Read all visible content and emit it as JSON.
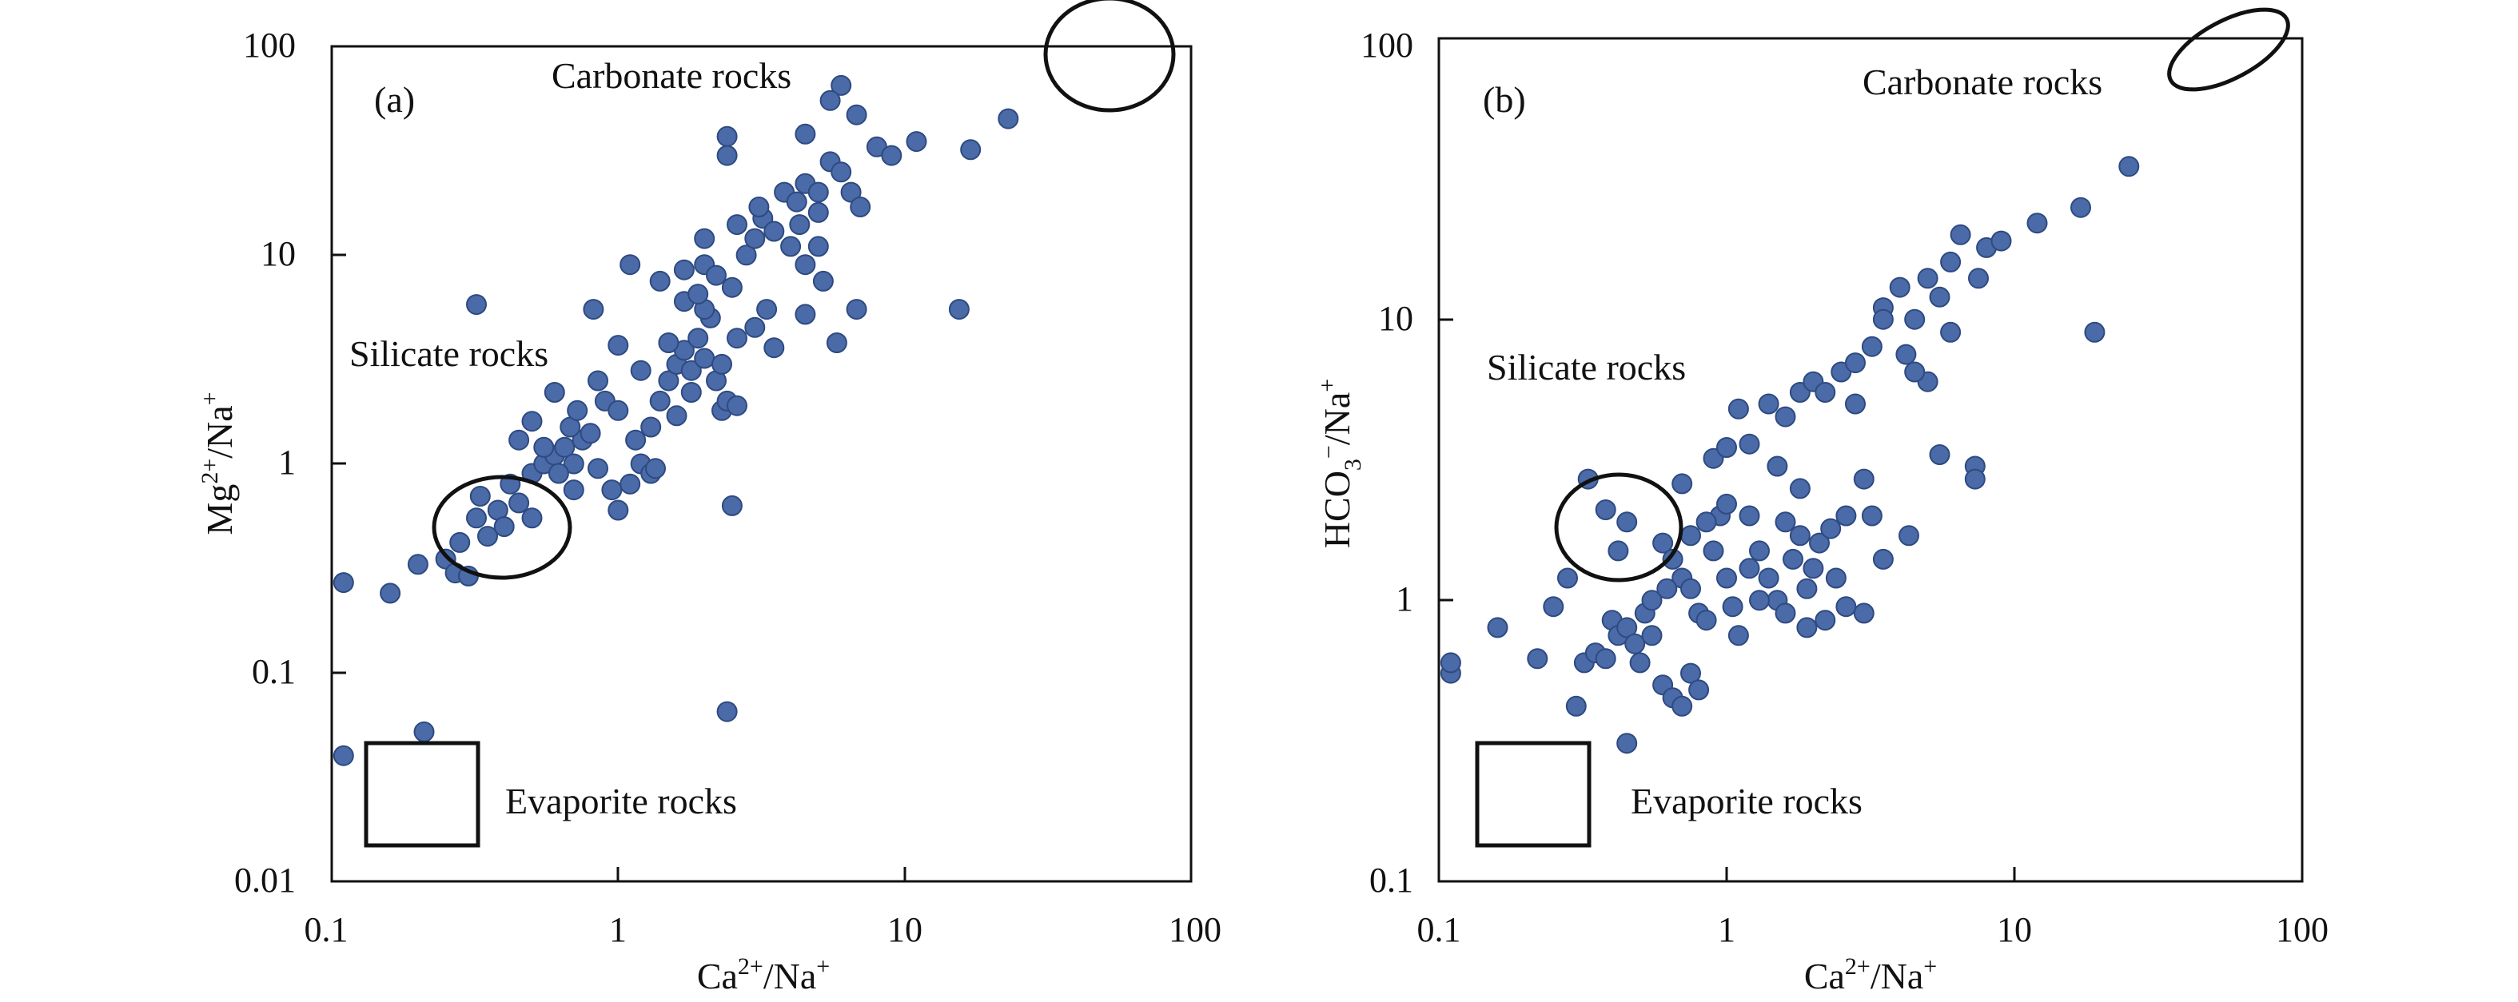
{
  "colors": {
    "point": "#4a6aa8",
    "point_edge": "#2e4a80",
    "hatch": "#333333",
    "line_hatch": "#6a9fb0",
    "axis": "#111111"
  },
  "chart_data": [
    {
      "panel": "(a)",
      "type": "scatter",
      "xlabel": "Ca2+/Na+",
      "ylabel": "Mg2+/Na+",
      "xscale": "log",
      "yscale": "log",
      "xlim": [
        0.1,
        100
      ],
      "ylim": [
        0.01,
        100
      ],
      "xticks": [
        "0.1",
        "1",
        "10",
        "100"
      ],
      "yticks": [
        "0.01",
        "0.1",
        "1",
        "10",
        "100"
      ],
      "annotations": {
        "carbonate": "Carbonate rocks",
        "silicate": "Silicate rocks",
        "evaporite": "Evaporite rocks"
      },
      "points": [
        [
          0.11,
          0.27
        ],
        [
          0.11,
          0.04
        ],
        [
          0.16,
          0.24
        ],
        [
          0.2,
          0.33
        ],
        [
          0.21,
          0.052
        ],
        [
          0.25,
          0.35
        ],
        [
          0.27,
          0.3
        ],
        [
          0.3,
          0.29
        ],
        [
          0.32,
          5.8
        ],
        [
          0.28,
          0.42
        ],
        [
          0.32,
          0.55
        ],
        [
          0.35,
          0.45
        ],
        [
          0.38,
          0.6
        ],
        [
          0.4,
          0.5
        ],
        [
          0.45,
          0.65
        ],
        [
          0.5,
          0.55
        ],
        [
          0.33,
          0.7
        ],
        [
          0.42,
          0.8
        ],
        [
          0.5,
          0.9
        ],
        [
          0.55,
          1.0
        ],
        [
          0.6,
          1.1
        ],
        [
          0.65,
          1.2
        ],
        [
          0.7,
          1.0
        ],
        [
          0.75,
          1.3
        ],
        [
          0.62,
          0.9
        ],
        [
          0.55,
          1.2
        ],
        [
          0.68,
          1.5
        ],
        [
          0.72,
          1.8
        ],
        [
          0.8,
          1.4
        ],
        [
          0.85,
          2.5
        ],
        [
          0.9,
          2.0
        ],
        [
          0.6,
          2.2
        ],
        [
          0.5,
          1.6
        ],
        [
          0.45,
          1.3
        ],
        [
          0.82,
          5.5
        ],
        [
          1.0,
          0.6
        ],
        [
          1.1,
          0.8
        ],
        [
          1.2,
          1.0
        ],
        [
          1.3,
          1.5
        ],
        [
          1.4,
          2.0
        ],
        [
          1.5,
          2.5
        ],
        [
          1.6,
          3.0
        ],
        [
          1.7,
          3.5
        ],
        [
          1.8,
          2.8
        ],
        [
          1.9,
          4.0
        ],
        [
          2.0,
          3.2
        ],
        [
          2.1,
          5.0
        ],
        [
          2.2,
          2.5
        ],
        [
          2.3,
          1.8
        ],
        [
          1.5,
          3.8
        ],
        [
          1.3,
          0.9
        ],
        [
          1.1,
          9.0
        ],
        [
          1.4,
          7.5
        ],
        [
          1.7,
          6.0
        ],
        [
          2.0,
          9.0
        ],
        [
          2.2,
          8.0
        ],
        [
          2.5,
          7.0
        ],
        [
          2.8,
          10.0
        ],
        [
          3.0,
          12.0
        ],
        [
          3.2,
          15.0
        ],
        [
          3.5,
          13.0
        ],
        [
          3.8,
          20.0
        ],
        [
          4.2,
          18.0
        ],
        [
          4.5,
          22.0
        ],
        [
          5.0,
          16.0
        ],
        [
          5.5,
          28.0
        ],
        [
          6.0,
          25.0
        ],
        [
          5.0,
          11.0
        ],
        [
          4.5,
          9.0
        ],
        [
          5.2,
          7.5
        ],
        [
          6.5,
          20.0
        ],
        [
          7.0,
          17.0
        ],
        [
          8.0,
          33.0
        ],
        [
          9.0,
          30.0
        ],
        [
          11.0,
          35.0
        ],
        [
          17.0,
          32.0
        ],
        [
          23.0,
          45.0
        ],
        [
          6.0,
          65.0
        ],
        [
          5.5,
          55.0
        ],
        [
          6.8,
          47.0
        ],
        [
          2.4,
          37.0
        ],
        [
          2.4,
          30.0
        ],
        [
          4.5,
          38.0
        ],
        [
          2.5,
          0.63
        ],
        [
          2.4,
          0.065
        ],
        [
          6.8,
          5.5
        ],
        [
          5.8,
          3.8
        ],
        [
          4.5,
          5.2
        ],
        [
          3.0,
          4.5
        ],
        [
          2.6,
          4.0
        ],
        [
          1.8,
          2.2
        ],
        [
          1.6,
          1.7
        ],
        [
          1.2,
          2.8
        ],
        [
          1.0,
          3.7
        ],
        [
          2.3,
          3.0
        ],
        [
          15.5,
          5.5
        ],
        [
          3.3,
          5.5
        ],
        [
          2.0,
          5.5
        ],
        [
          1.9,
          6.5
        ],
        [
          2.4,
          2.0
        ],
        [
          1.0,
          1.8
        ],
        [
          1.15,
          1.3
        ],
        [
          0.95,
          0.75
        ],
        [
          1.35,
          0.95
        ],
        [
          2.6,
          1.9
        ],
        [
          3.5,
          3.6
        ],
        [
          4.0,
          11.0
        ],
        [
          4.3,
          14.0
        ],
        [
          3.1,
          17.0
        ],
        [
          2.6,
          14.0
        ],
        [
          1.7,
          8.5
        ],
        [
          2.0,
          12.0
        ],
        [
          5.0,
          20.0
        ],
        [
          0.7,
          0.75
        ],
        [
          0.85,
          0.95
        ]
      ]
    },
    {
      "panel": "(b)",
      "type": "scatter",
      "xlabel": "Ca2+/Na+",
      "ylabel": "HCO3−/Na+",
      "xscale": "log",
      "yscale": "log",
      "xlim": [
        0.1,
        100
      ],
      "ylim": [
        0.1,
        100
      ],
      "xticks": [
        "0.1",
        "1",
        "10",
        "100"
      ],
      "yticks": [
        "0.1",
        "1",
        "10",
        "100"
      ],
      "annotations": {
        "carbonate": "Carbonate rocks",
        "silicate": "Silicate rocks",
        "evaporite": "Evaporite rocks"
      },
      "points": [
        [
          0.11,
          0.55
        ],
        [
          0.11,
          0.6
        ],
        [
          0.16,
          0.8
        ],
        [
          0.22,
          0.62
        ],
        [
          0.25,
          0.95
        ],
        [
          0.28,
          1.2
        ],
        [
          0.3,
          0.42
        ],
        [
          0.32,
          0.6
        ],
        [
          0.35,
          0.65
        ],
        [
          0.38,
          0.62
        ],
        [
          0.4,
          0.85
        ],
        [
          0.42,
          0.75
        ],
        [
          0.45,
          0.8
        ],
        [
          0.48,
          0.7
        ],
        [
          0.5,
          0.6
        ],
        [
          0.52,
          0.9
        ],
        [
          0.55,
          1.0
        ],
        [
          0.6,
          0.5
        ],
        [
          0.65,
          0.45
        ],
        [
          0.7,
          0.42
        ],
        [
          0.75,
          0.55
        ],
        [
          0.8,
          0.48
        ],
        [
          0.45,
          0.31
        ],
        [
          0.33,
          2.7
        ],
        [
          0.38,
          2.1
        ],
        [
          0.42,
          1.5
        ],
        [
          0.45,
          1.9
        ],
        [
          0.6,
          1.6
        ],
        [
          0.65,
          1.4
        ],
        [
          0.7,
          1.2
        ],
        [
          0.75,
          1.1
        ],
        [
          0.8,
          0.9
        ],
        [
          0.85,
          0.85
        ],
        [
          0.9,
          1.5
        ],
        [
          0.95,
          2.0
        ],
        [
          1.0,
          1.2
        ],
        [
          1.05,
          0.95
        ],
        [
          1.1,
          0.75
        ],
        [
          1.2,
          1.3
        ],
        [
          1.3,
          1.5
        ],
        [
          1.4,
          1.2
        ],
        [
          1.5,
          1.0
        ],
        [
          1.6,
          0.9
        ],
        [
          1.7,
          1.4
        ],
        [
          1.8,
          1.7
        ],
        [
          1.9,
          1.1
        ],
        [
          2.0,
          1.3
        ],
        [
          2.1,
          1.6
        ],
        [
          2.2,
          0.85
        ],
        [
          2.4,
          1.2
        ],
        [
          2.6,
          0.95
        ],
        [
          3.0,
          0.9
        ],
        [
          3.2,
          2.0
        ],
        [
          3.5,
          1.4
        ],
        [
          4.3,
          1.7
        ],
        [
          0.7,
          2.6
        ],
        [
          0.9,
          3.2
        ],
        [
          1.0,
          3.5
        ],
        [
          1.2,
          3.6
        ],
        [
          1.4,
          5.0
        ],
        [
          1.6,
          4.5
        ],
        [
          1.8,
          5.5
        ],
        [
          2.0,
          6.0
        ],
        [
          2.2,
          5.5
        ],
        [
          2.5,
          6.5
        ],
        [
          2.8,
          7.0
        ],
        [
          3.2,
          8.0
        ],
        [
          3.5,
          11.0
        ],
        [
          4.0,
          13.0
        ],
        [
          4.5,
          10.0
        ],
        [
          5.0,
          14.0
        ],
        [
          5.5,
          12.0
        ],
        [
          6.0,
          16.0
        ],
        [
          6.5,
          20.0
        ],
        [
          7.5,
          14.0
        ],
        [
          8.0,
          18.0
        ],
        [
          9.0,
          19.0
        ],
        [
          12.0,
          22.0
        ],
        [
          17.0,
          25.0
        ],
        [
          25.0,
          35.0
        ],
        [
          19.0,
          9.0
        ],
        [
          7.3,
          3.0
        ],
        [
          7.3,
          2.7
        ],
        [
          5.5,
          3.3
        ],
        [
          6.0,
          9.0
        ],
        [
          5.0,
          6.0
        ],
        [
          4.5,
          6.5
        ],
        [
          3.0,
          2.7
        ],
        [
          2.6,
          2.0
        ],
        [
          1.8,
          2.5
        ],
        [
          1.5,
          3.0
        ],
        [
          1.2,
          2.0
        ],
        [
          1.0,
          2.2
        ],
        [
          0.85,
          1.9
        ],
        [
          0.75,
          1.7
        ],
        [
          1.1,
          4.8
        ],
        [
          1.3,
          1.0
        ],
        [
          2.3,
          1.8
        ],
        [
          3.5,
          10.0
        ],
        [
          4.2,
          7.5
        ],
        [
          2.8,
          5.0
        ],
        [
          1.9,
          0.8
        ],
        [
          1.6,
          1.9
        ],
        [
          0.55,
          0.75
        ],
        [
          0.62,
          1.1
        ]
      ]
    }
  ]
}
